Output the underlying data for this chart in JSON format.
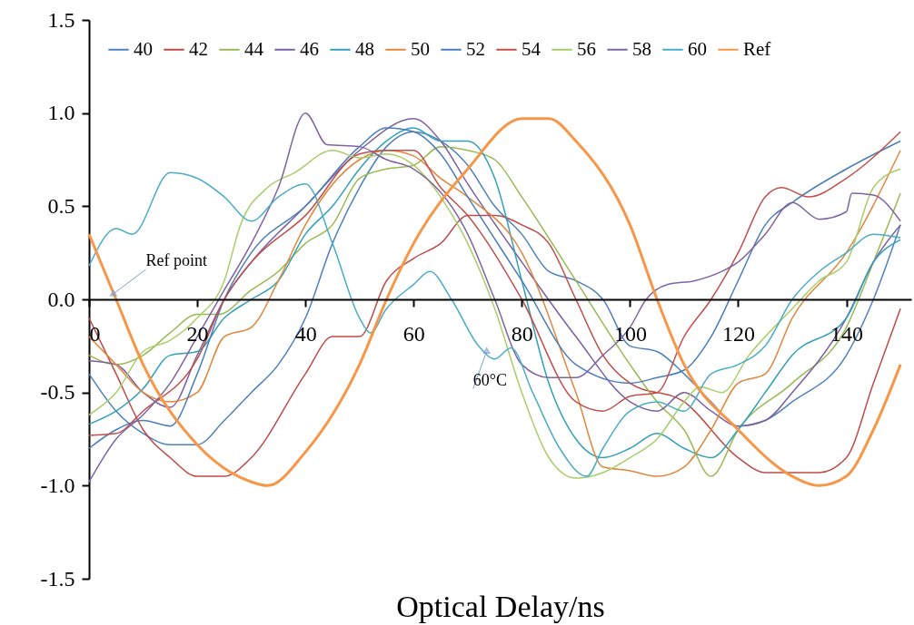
{
  "chart_data": {
    "type": "line",
    "xlabel": "Optical Delay/ns",
    "xlim": [
      0,
      152
    ],
    "ylim": [
      -1.5,
      1.5
    ],
    "xticks": [
      0,
      20,
      40,
      60,
      80,
      100,
      120,
      140
    ],
    "yticks": [
      {
        "value": -1.5,
        "label": "-1.5"
      },
      {
        "value": -1,
        "label": "-1.0"
      },
      {
        "value": -0.5,
        "label": "-0.5"
      },
      {
        "value": 0,
        "label": "0.0"
      },
      {
        "value": 0.5,
        "label": "0.5"
      },
      {
        "value": 1,
        "label": "1.0"
      },
      {
        "value": 1.5,
        "label": "1.5"
      }
    ],
    "grid": false,
    "legend": "top",
    "marker": "none",
    "line_style": "solid",
    "annotations": [
      {
        "text": "Ref point",
        "x": 4.5,
        "y": 0.03
      },
      {
        "text": "60°C",
        "x": 73.5,
        "y": -0.28
      }
    ],
    "series": [
      {
        "name": "40",
        "color": "#4f81bd",
        "x": [
          0,
          5,
          10,
          15,
          20,
          25,
          30,
          35,
          40,
          45,
          50,
          55,
          60,
          65,
          70,
          75,
          80,
          85,
          90,
          95,
          100,
          105,
          110,
          115,
          120,
          125,
          130,
          140,
          145,
          150
        ],
        "values": [
          -0.4,
          -0.6,
          -0.72,
          -0.78,
          -0.78,
          -0.65,
          -0.5,
          -0.35,
          -0.1,
          0.3,
          0.6,
          0.82,
          0.9,
          0.85,
          0.72,
          0.5,
          0.35,
          0.15,
          0.1,
          0.0,
          -0.25,
          -0.28,
          -0.4,
          -0.55,
          -0.68,
          -0.65,
          -0.55,
          -0.3,
          0.0,
          0.4
        ]
      },
      {
        "name": "42",
        "color": "#be4b48",
        "x": [
          0,
          5,
          10,
          15,
          20,
          25,
          30,
          40,
          45,
          50,
          55,
          60,
          65,
          70,
          75,
          80,
          85,
          90,
          95,
          100,
          110,
          120,
          125,
          130,
          135,
          140,
          145,
          150
        ],
        "values": [
          -0.1,
          -0.4,
          -0.7,
          -0.85,
          -0.95,
          -0.95,
          -0.85,
          -0.4,
          -0.2,
          -0.2,
          0.1,
          0.22,
          0.3,
          0.45,
          0.45,
          0.4,
          0.3,
          0.0,
          -0.3,
          -0.45,
          -0.55,
          -0.85,
          -0.93,
          -0.93,
          -0.93,
          -0.85,
          -0.45,
          -0.05
        ]
      },
      {
        "name": "44",
        "color": "#98b954",
        "x": [
          0,
          5,
          10,
          15,
          20,
          24,
          30,
          35,
          40,
          45,
          50,
          55,
          60,
          65,
          70,
          75,
          80,
          90,
          100,
          105,
          110,
          115,
          120,
          130,
          140,
          145,
          150
        ],
        "values": [
          -0.3,
          -0.35,
          -0.3,
          -0.18,
          -0.08,
          -0.08,
          0.05,
          0.15,
          0.3,
          0.4,
          0.65,
          0.7,
          0.72,
          0.82,
          0.8,
          0.75,
          0.55,
          0.1,
          -0.35,
          -0.55,
          -0.7,
          -0.95,
          -0.7,
          -0.45,
          -0.15,
          0.2,
          0.57
        ]
      },
      {
        "name": "46",
        "color": "#7d60a0",
        "x": [
          0,
          5,
          10,
          15,
          20,
          25,
          30,
          40,
          50,
          60,
          65,
          70,
          80,
          90,
          100,
          105,
          110,
          115,
          120,
          125,
          130,
          140,
          145,
          150
        ],
        "values": [
          -0.33,
          -0.35,
          -0.5,
          -0.58,
          -0.3,
          0.0,
          0.2,
          0.5,
          0.8,
          0.97,
          0.85,
          0.62,
          0.2,
          -0.2,
          -0.55,
          -0.6,
          -0.5,
          -0.6,
          -0.68,
          -0.65,
          -0.5,
          -0.1,
          0.2,
          0.4
        ]
      },
      {
        "name": "48",
        "color": "#31a0b8",
        "x": [
          0,
          5,
          10,
          15,
          20,
          25,
          30,
          35,
          40,
          45,
          50,
          55,
          60,
          65,
          70,
          75,
          80,
          85,
          90,
          95,
          100,
          105,
          110,
          115,
          120,
          125,
          130,
          140,
          145,
          150
        ],
        "values": [
          -0.67,
          -0.6,
          -0.48,
          -0.3,
          -0.28,
          -0.1,
          0.0,
          0.1,
          0.35,
          0.5,
          0.7,
          0.85,
          0.92,
          0.85,
          0.85,
          0.65,
          0.1,
          -0.45,
          -0.75,
          -0.85,
          -0.8,
          -0.72,
          -0.8,
          -0.85,
          -0.7,
          -0.5,
          -0.3,
          -0.1,
          0.2,
          0.32
        ]
      },
      {
        "name": "50",
        "color": "#e0873c",
        "x": [
          0,
          5,
          10,
          15,
          20,
          25,
          30,
          35,
          40,
          50,
          55,
          60,
          65,
          70,
          80,
          90,
          95,
          100,
          105,
          110,
          115,
          120,
          125,
          130,
          140,
          150
        ],
        "values": [
          -0.2,
          -0.35,
          -0.5,
          -0.55,
          -0.5,
          -0.2,
          -0.15,
          0.1,
          0.4,
          0.75,
          0.8,
          0.77,
          0.65,
          0.55,
          0.25,
          -0.5,
          -0.9,
          -0.92,
          -0.95,
          -0.9,
          -0.7,
          -0.45,
          -0.4,
          -0.1,
          0.25,
          0.8
        ]
      },
      {
        "name": "52",
        "color": "#4a7ebb",
        "x": [
          0,
          5,
          10,
          15,
          20,
          25,
          30,
          40,
          50,
          55,
          60,
          65,
          70,
          80,
          90,
          100,
          105,
          110,
          115,
          120,
          125,
          130,
          140,
          150
        ],
        "values": [
          -0.8,
          -0.7,
          -0.65,
          -0.68,
          -0.4,
          0.0,
          0.25,
          0.5,
          0.82,
          0.92,
          0.9,
          0.78,
          0.55,
          0.1,
          -0.35,
          -0.45,
          -0.42,
          -0.38,
          -0.2,
          0.1,
          0.4,
          0.52,
          0.7,
          0.85
        ]
      },
      {
        "name": "54",
        "color": "#c0504d",
        "x": [
          0,
          5,
          10,
          20,
          25,
          30,
          40,
          50,
          55,
          60,
          65,
          70,
          80,
          90,
          95,
          100,
          105,
          110,
          115,
          120,
          125,
          128,
          133,
          140,
          150
        ],
        "values": [
          -0.73,
          -0.72,
          -0.6,
          -0.32,
          0.0,
          0.2,
          0.45,
          0.78,
          0.8,
          0.8,
          0.6,
          0.45,
          0.0,
          -0.55,
          -0.6,
          -0.52,
          -0.5,
          -0.2,
          0.0,
          0.25,
          0.55,
          0.6,
          0.55,
          0.65,
          0.9
        ]
      },
      {
        "name": "56",
        "color": "#a8cd6a",
        "x": [
          0,
          5,
          10,
          15,
          20,
          25,
          28,
          33,
          38,
          45,
          50,
          55,
          60,
          65,
          70,
          75,
          80,
          85,
          90,
          95,
          100,
          105,
          110,
          113,
          117,
          122,
          130,
          135,
          140,
          145,
          150
        ],
        "values": [
          -0.62,
          -0.5,
          -0.28,
          -0.22,
          -0.1,
          0.1,
          0.4,
          0.6,
          0.68,
          0.8,
          0.76,
          0.78,
          0.72,
          0.55,
          0.3,
          -0.05,
          -0.5,
          -0.85,
          -0.96,
          -0.93,
          -0.85,
          -0.75,
          -0.55,
          -0.47,
          -0.5,
          -0.3,
          -0.05,
          0.1,
          0.2,
          0.6,
          0.7
        ]
      },
      {
        "name": "58",
        "color": "#8064a2",
        "x": [
          0,
          5,
          10,
          15,
          20,
          25,
          30,
          35,
          40,
          44,
          50,
          55,
          60,
          70,
          75,
          80,
          85,
          90,
          95,
          100,
          103,
          107,
          112,
          117,
          120,
          125,
          130,
          135,
          140,
          141,
          145,
          150
        ],
        "values": [
          -0.98,
          -0.75,
          -0.62,
          -0.45,
          -0.2,
          0.05,
          0.3,
          0.6,
          1.0,
          0.83,
          0.82,
          0.75,
          0.7,
          0.35,
          0.0,
          -0.35,
          -0.42,
          -0.42,
          -0.3,
          -0.15,
          0.0,
          0.08,
          0.1,
          0.15,
          0.2,
          0.35,
          0.52,
          0.43,
          0.47,
          0.57,
          0.56,
          0.42
        ]
      },
      {
        "name": "60",
        "color": "#4bacc6",
        "x": [
          0,
          5,
          8,
          15,
          20,
          25,
          30,
          35,
          40,
          45,
          50,
          52,
          55,
          60,
          63,
          67,
          72,
          75,
          78,
          82,
          87,
          92,
          95,
          100,
          105,
          110,
          115,
          120,
          125,
          130,
          135,
          140,
          145,
          150
        ],
        "values": [
          0.18,
          0.38,
          0.35,
          0.68,
          0.65,
          0.55,
          0.42,
          0.55,
          0.62,
          0.3,
          -0.1,
          -0.18,
          -0.05,
          0.08,
          0.15,
          0.0,
          -0.25,
          -0.32,
          -0.26,
          -0.5,
          -0.8,
          -0.95,
          -0.8,
          -0.6,
          -0.55,
          -0.6,
          -0.4,
          -0.35,
          -0.25,
          0.0,
          0.15,
          0.25,
          0.35,
          0.33
        ]
      },
      {
        "name": "Ref",
        "color": "#f79646",
        "x": [
          0,
          5,
          10,
          20,
          30,
          33,
          40,
          50,
          55,
          60,
          70,
          80,
          85,
          90,
          100,
          105,
          110,
          120,
          130,
          135,
          140,
          145,
          150
        ],
        "values": [
          0.35,
          0.0,
          -0.35,
          -0.78,
          -0.98,
          -1.0,
          -0.82,
          -0.35,
          0.0,
          0.3,
          0.7,
          0.97,
          0.97,
          0.85,
          0.4,
          0.0,
          -0.35,
          -0.7,
          -0.95,
          -1.0,
          -0.95,
          -0.7,
          -0.35
        ]
      }
    ]
  }
}
